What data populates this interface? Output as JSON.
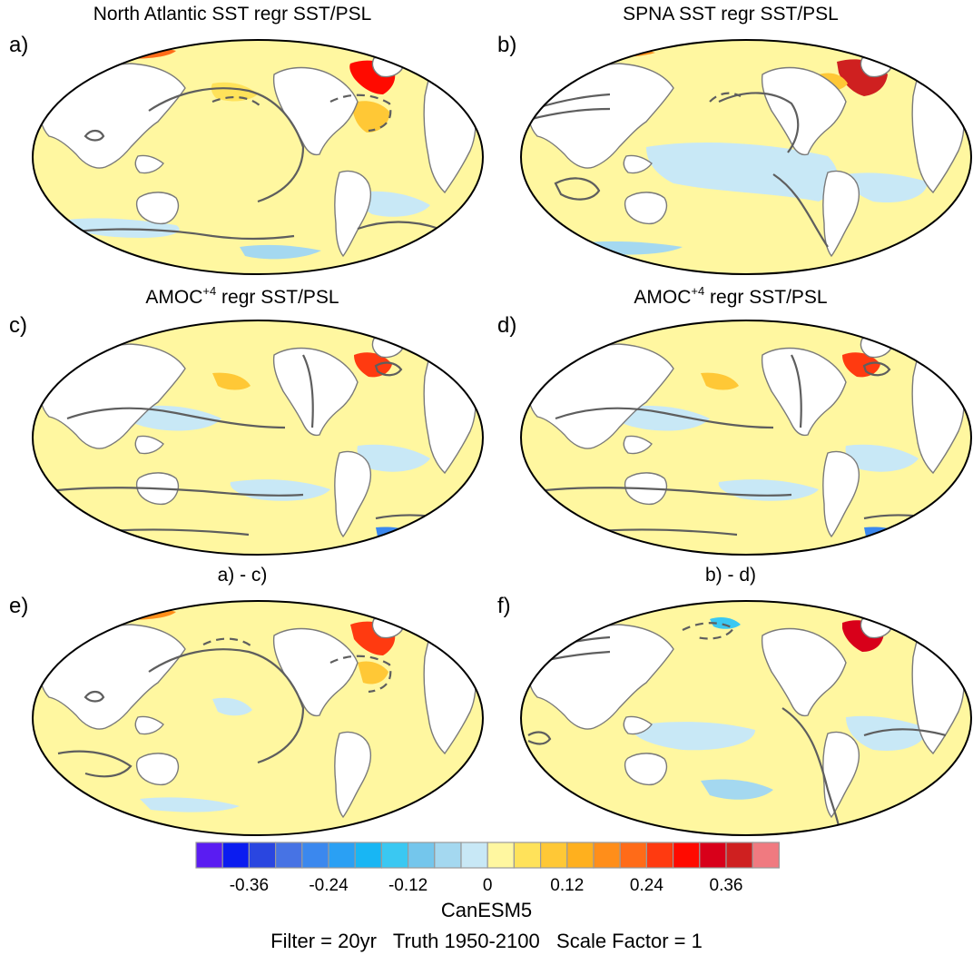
{
  "panels": [
    {
      "letter": "a)",
      "title": "North Atlantic SST regr SST/PSL",
      "title_sup": "",
      "title_rest": ""
    },
    {
      "letter": "b)",
      "title": "SPNA SST regr SST/PSL",
      "title_sup": "",
      "title_rest": ""
    },
    {
      "letter": "c)",
      "title": "AMOC",
      "title_sup": "+4",
      "title_rest": " regr SST/PSL"
    },
    {
      "letter": "d)",
      "title": "AMOC",
      "title_sup": "+4",
      "title_rest": " regr SST/PSL"
    },
    {
      "letter": "e)",
      "title": "a) - c)",
      "title_sup": "",
      "title_rest": ""
    },
    {
      "letter": "f)",
      "title": "b) - d)",
      "title_sup": "",
      "title_rest": ""
    }
  ],
  "colorbar": {
    "colors": [
      "#5a1cf2",
      "#0b1cf0",
      "#2a46e0",
      "#4773e4",
      "#3b88ee",
      "#2aa0f4",
      "#18b6f4",
      "#3ac8f2",
      "#74c6ec",
      "#a4d8f0",
      "#c8e8f6",
      "#fff7a0",
      "#ffe25a",
      "#ffc836",
      "#ffb01e",
      "#ff8e1a",
      "#ff6b18",
      "#ff3a10",
      "#ff0a00",
      "#d8001a",
      "#cf2020",
      "#f07a80"
    ],
    "tick_labels": [
      "-0.36",
      "-0.24",
      "-0.12",
      "0",
      "0.12",
      "0.24",
      "0.36"
    ],
    "tick_boundaries": [
      2,
      5,
      8,
      11,
      14,
      17,
      20
    ]
  },
  "footer": {
    "model": "CanESM5",
    "line2": "Filter = 20yr   Truth 1950-2100   Scale Factor = 1"
  }
}
